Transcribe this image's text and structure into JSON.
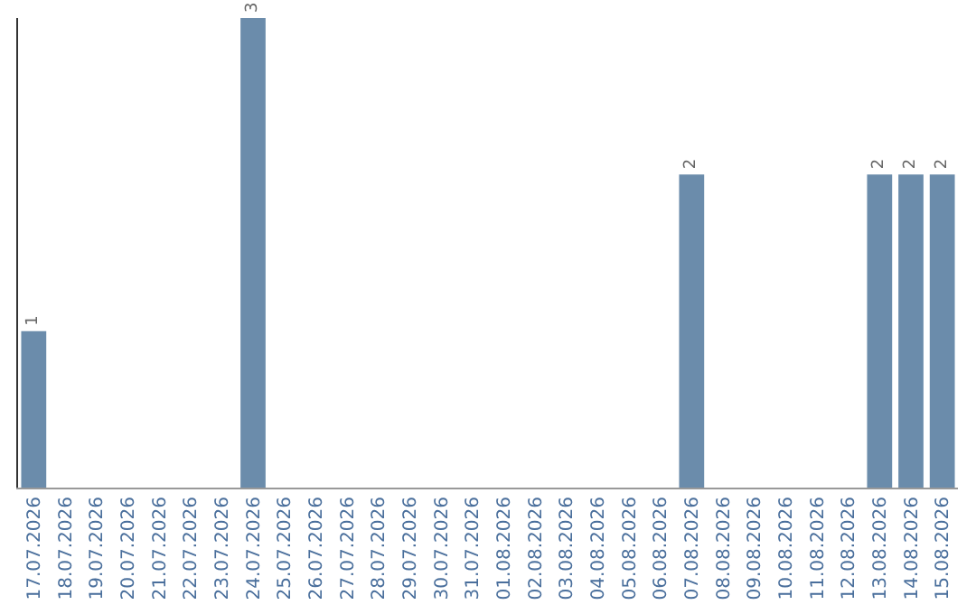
{
  "chart_data": {
    "type": "bar",
    "categories": [
      "17.07.2026",
      "18.07.2026",
      "19.07.2026",
      "20.07.2026",
      "21.07.2026",
      "22.07.2026",
      "23.07.2026",
      "24.07.2026",
      "25.07.2026",
      "26.07.2026",
      "27.07.2026",
      "28.07.2026",
      "29.07.2026",
      "30.07.2026",
      "31.07.2026",
      "01.08.2026",
      "02.08.2026",
      "03.08.2026",
      "04.08.2026",
      "05.08.2026",
      "06.08.2026",
      "07.08.2026",
      "08.08.2026",
      "09.08.2026",
      "10.08.2026",
      "11.08.2026",
      "12.08.2026",
      "13.08.2026",
      "14.08.2026",
      "15.08.2026"
    ],
    "values": [
      1,
      0,
      0,
      0,
      0,
      0,
      0,
      3,
      0,
      0,
      0,
      0,
      0,
      0,
      0,
      0,
      0,
      0,
      0,
      0,
      0,
      2,
      0,
      0,
      0,
      0,
      0,
      2,
      2,
      2
    ],
    "value_labels": [
      "1",
      null,
      null,
      null,
      null,
      null,
      null,
      "3",
      null,
      null,
      null,
      null,
      null,
      null,
      null,
      null,
      null,
      null,
      null,
      null,
      null,
      "2",
      null,
      null,
      null,
      null,
      null,
      "2",
      "2",
      "2"
    ],
    "color": "#6b8cab",
    "ylim": [
      0,
      3
    ]
  }
}
